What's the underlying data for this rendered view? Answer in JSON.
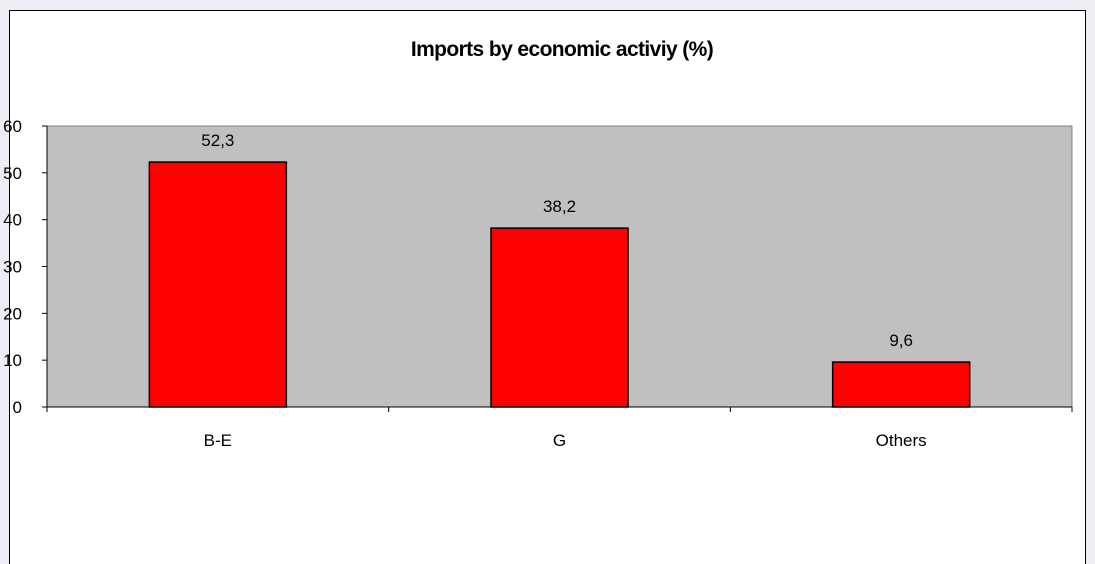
{
  "chart_data": {
    "type": "bar",
    "title": "Imports by economic activiy (%)",
    "categories": [
      "B-E",
      "G",
      "Others"
    ],
    "values": [
      52.3,
      38.2,
      9.6
    ],
    "data_labels": [
      "52,3",
      "38,2",
      "9,6"
    ],
    "ylim": [
      0,
      60
    ],
    "yticks": [
      0,
      10,
      20,
      30,
      40,
      50,
      60
    ],
    "xlabel": "",
    "ylabel": "",
    "grid": false,
    "legend": "none",
    "colors": {
      "bar_fill": "#ff0000",
      "bar_stroke": "#000000",
      "plot_background": "#c0c0c0",
      "page_background": "#ffffff",
      "frame": "#eceef3"
    }
  }
}
